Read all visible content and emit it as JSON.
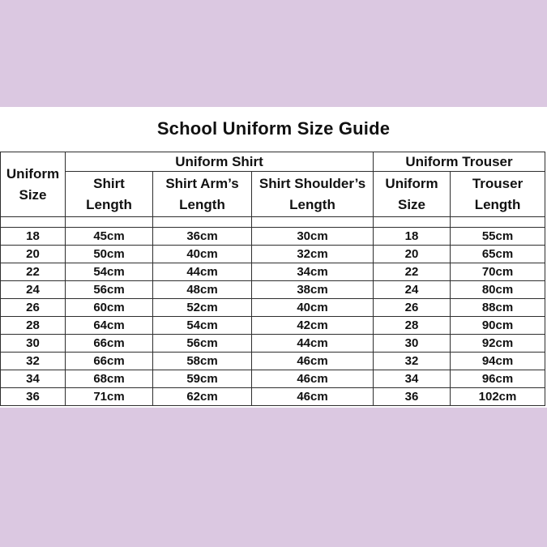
{
  "page": {
    "title": "School Uniform Size Guide"
  },
  "colors": {
    "band": "#dbc8e1",
    "background": "#ffffff",
    "table_border": "#2e2e2e",
    "text": "#111111"
  },
  "table": {
    "corner": {
      "l1": "Uniform",
      "l2": "Size"
    },
    "groups": {
      "shirt": "Uniform Shirt",
      "trouser": "Uniform Trouser"
    },
    "cols": [
      {
        "l1": "Shirt",
        "l2": "Length"
      },
      {
        "l1": "Shirt Arm’s",
        "l2": "Length"
      },
      {
        "l1": "Shirt Shoulder’s",
        "l2": "Length"
      },
      {
        "l1": "Uniform",
        "l2": "Size"
      },
      {
        "l1": "Trouser",
        "l2": "Length"
      }
    ],
    "rows": [
      [
        "18",
        "45cm",
        "36cm",
        "30cm",
        "18",
        "55cm"
      ],
      [
        "20",
        "50cm",
        "40cm",
        "32cm",
        "20",
        "65cm"
      ],
      [
        "22",
        "54cm",
        "44cm",
        "34cm",
        "22",
        "70cm"
      ],
      [
        "24",
        "56cm",
        "48cm",
        "38cm",
        "24",
        "80cm"
      ],
      [
        "26",
        "60cm",
        "52cm",
        "40cm",
        "26",
        "88cm"
      ],
      [
        "28",
        "64cm",
        "54cm",
        "42cm",
        "28",
        "90cm"
      ],
      [
        "30",
        "66cm",
        "56cm",
        "44cm",
        "30",
        "92cm"
      ],
      [
        "32",
        "66cm",
        "58cm",
        "46cm",
        "32",
        "94cm"
      ],
      [
        "34",
        "68cm",
        "59cm",
        "46cm",
        "34",
        "96cm"
      ],
      [
        "36",
        "71cm",
        "62cm",
        "46cm",
        "36",
        "102cm"
      ]
    ]
  }
}
